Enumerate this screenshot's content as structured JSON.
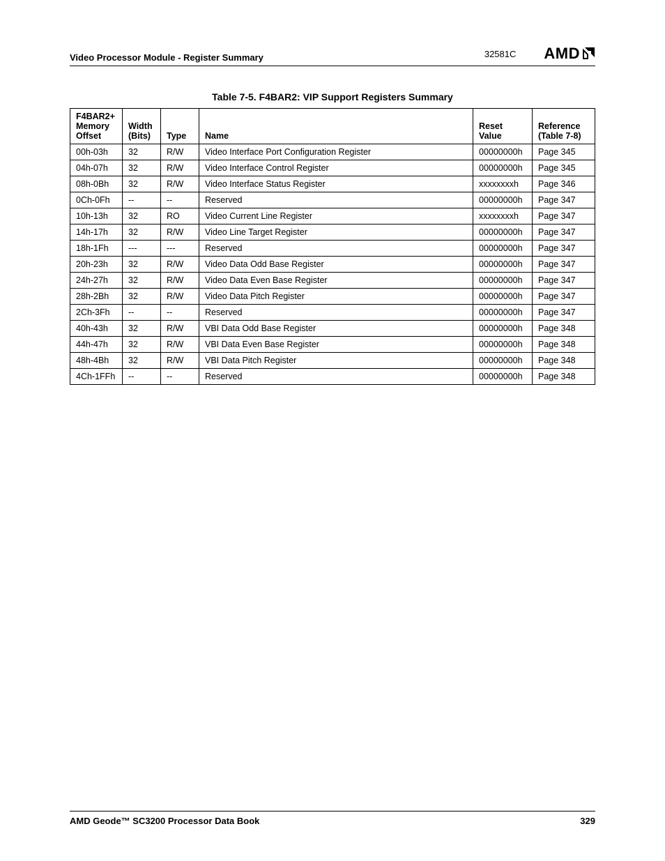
{
  "header": {
    "section_title": "Video Processor Module - Register Summary",
    "doc_number": "32581C",
    "logo_text": "AMD"
  },
  "table": {
    "caption": "Table 7-5.  F4BAR2: VIP Support Registers Summary",
    "columns": {
      "offset": "F4BAR2+ Memory Offset",
      "width": "Width (Bits)",
      "type": "Type",
      "name": "Name",
      "reset": "Reset Value",
      "ref": "Reference (Table 7-8)"
    },
    "rows": [
      {
        "offset": "00h-03h",
        "width": "32",
        "type": "R/W",
        "name": "Video Interface Port Configuration Register",
        "reset": "00000000h",
        "ref": "Page 345"
      },
      {
        "offset": "04h-07h",
        "width": "32",
        "type": "R/W",
        "name": "Video Interface Control Register",
        "reset": "00000000h",
        "ref": "Page 345"
      },
      {
        "offset": "08h-0Bh",
        "width": "32",
        "type": "R/W",
        "name": "Video Interface Status Register",
        "reset": "xxxxxxxxh",
        "ref": "Page 346"
      },
      {
        "offset": "0Ch-0Fh",
        "width": "--",
        "type": "--",
        "name": "Reserved",
        "reset": "00000000h",
        "ref": "Page 347"
      },
      {
        "offset": "10h-13h",
        "width": "32",
        "type": "RO",
        "name": "Video Current Line Register",
        "reset": "xxxxxxxxh",
        "ref": "Page 347"
      },
      {
        "offset": "14h-17h",
        "width": "32",
        "type": "R/W",
        "name": "Video Line Target Register",
        "reset": "00000000h",
        "ref": "Page 347"
      },
      {
        "offset": "18h-1Fh",
        "width": "---",
        "type": "---",
        "name": "Reserved",
        "reset": "00000000h",
        "ref": "Page 347"
      },
      {
        "offset": "20h-23h",
        "width": "32",
        "type": "R/W",
        "name": "Video Data Odd Base Register",
        "reset": "00000000h",
        "ref": "Page 347"
      },
      {
        "offset": "24h-27h",
        "width": "32",
        "type": "R/W",
        "name": "Video Data Even Base Register",
        "reset": "00000000h",
        "ref": "Page 347"
      },
      {
        "offset": "28h-2Bh",
        "width": "32",
        "type": "R/W",
        "name": "Video Data Pitch Register",
        "reset": "00000000h",
        "ref": "Page 347"
      },
      {
        "offset": "2Ch-3Fh",
        "width": "--",
        "type": "--",
        "name": "Reserved",
        "reset": "00000000h",
        "ref": "Page 347"
      },
      {
        "offset": "40h-43h",
        "width": "32",
        "type": "R/W",
        "name": "VBI Data Odd Base Register",
        "reset": "00000000h",
        "ref": "Page 348"
      },
      {
        "offset": "44h-47h",
        "width": "32",
        "type": "R/W",
        "name": "VBI Data Even Base Register",
        "reset": "00000000h",
        "ref": "Page 348"
      },
      {
        "offset": "48h-4Bh",
        "width": "32",
        "type": "R/W",
        "name": "VBI Data Pitch Register",
        "reset": "00000000h",
        "ref": "Page 348"
      },
      {
        "offset": "4Ch-1FFh",
        "width": "--",
        "type": "--",
        "name": "Reserved",
        "reset": "00000000h",
        "ref": "Page 348"
      }
    ]
  },
  "footer": {
    "book_title": "AMD Geode™ SC3200 Processor Data Book",
    "page_number": "329"
  }
}
